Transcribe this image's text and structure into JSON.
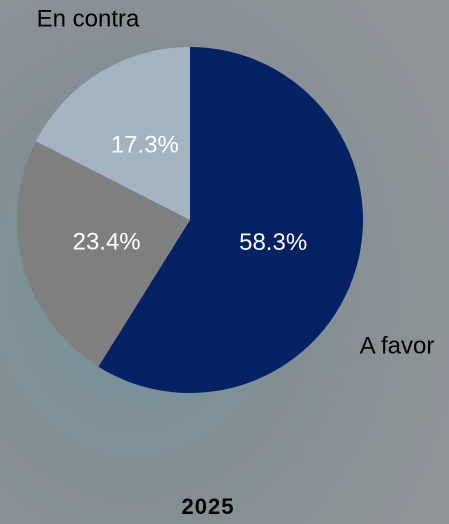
{
  "chart_data": {
    "type": "pie",
    "title": "2025",
    "categories": [
      "A favor",
      null,
      "En contra"
    ],
    "values": [
      58.3,
      23.4,
      17.3
    ],
    "value_labels": [
      "58.3%",
      "23.4%",
      "17.3%"
    ],
    "colors": [
      "#032163",
      "#7f7f7f",
      "#a3b3c2"
    ]
  }
}
